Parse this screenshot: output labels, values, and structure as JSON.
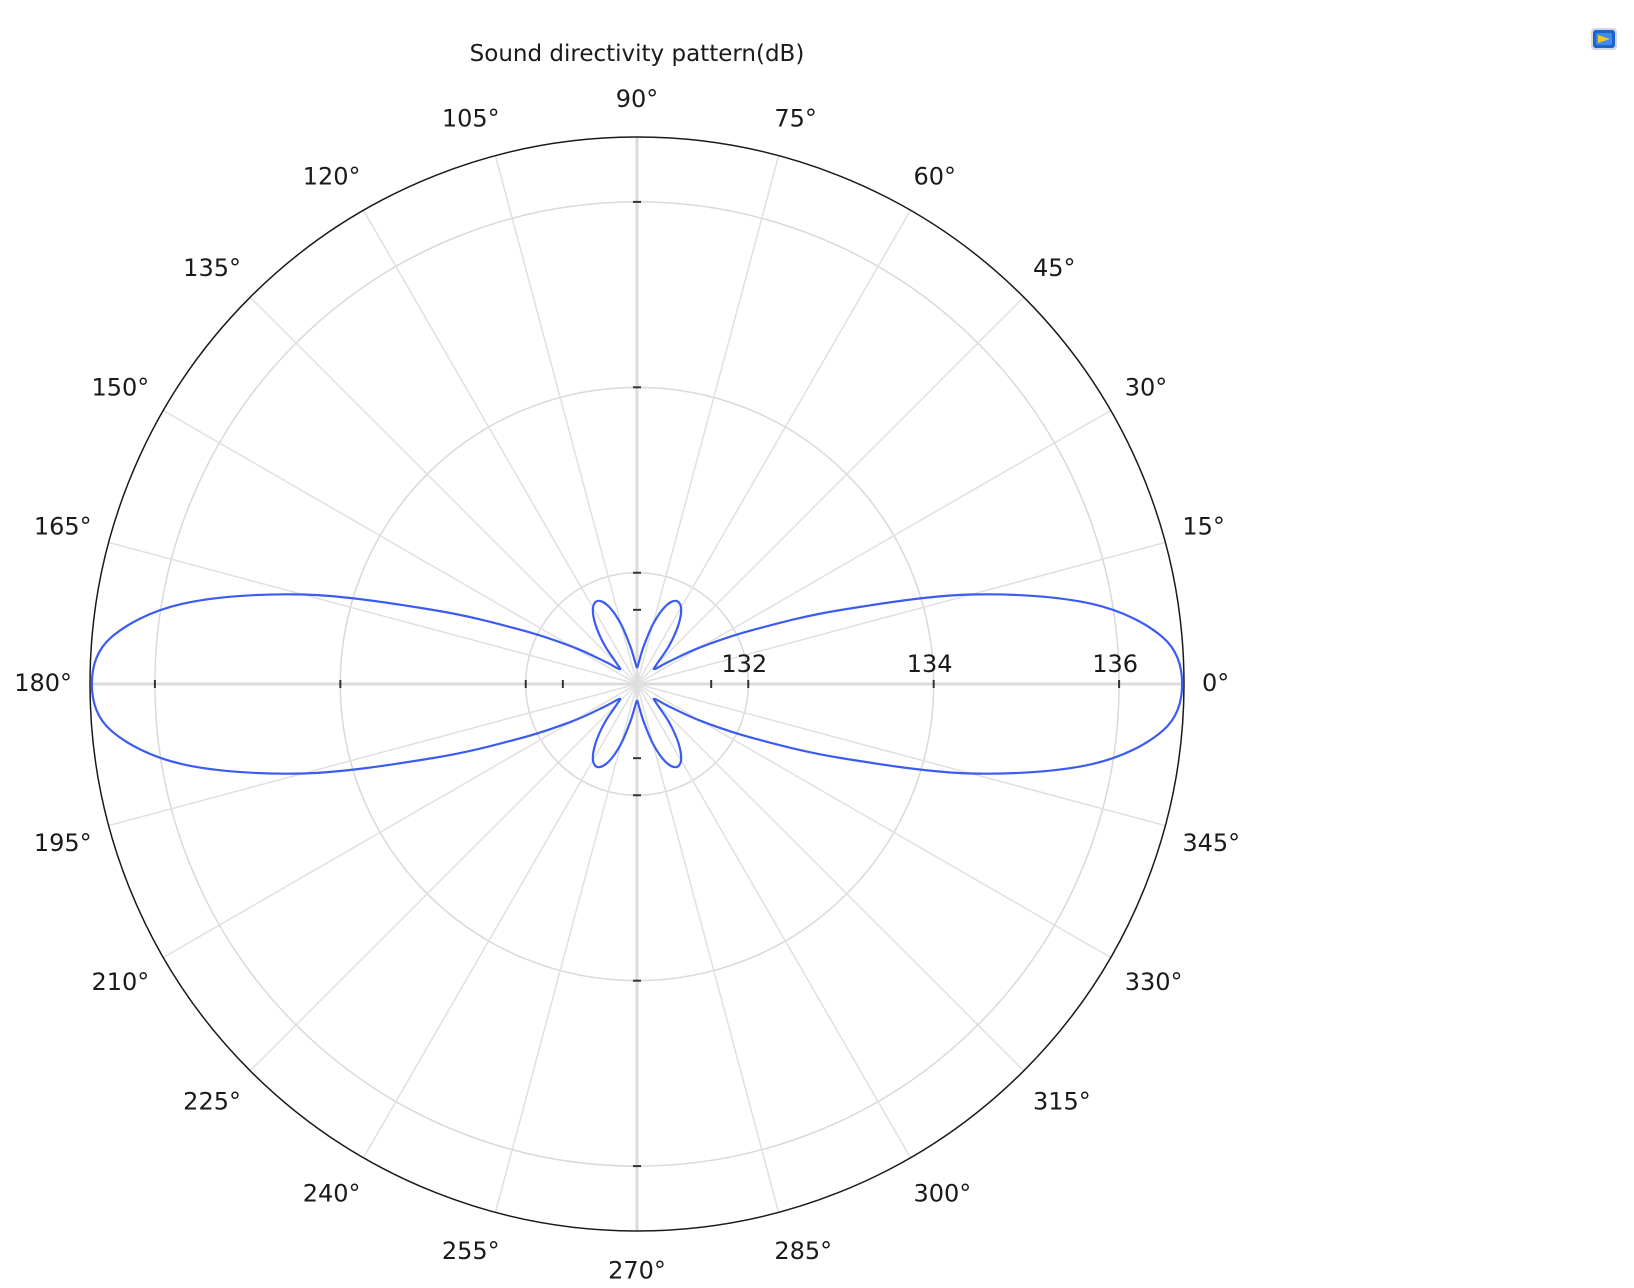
{
  "chart_data": {
    "type": "polar-line",
    "title": "Sound directivity pattern(dB)",
    "angle_unit": "degrees",
    "angle_ticks": [
      0,
      15,
      30,
      45,
      60,
      75,
      90,
      105,
      120,
      135,
      150,
      165,
      180,
      195,
      210,
      225,
      240,
      255,
      270,
      285,
      300,
      315,
      330,
      345
    ],
    "angle_tick_labels": [
      "0°",
      "15°",
      "30°",
      "45°",
      "60°",
      "75°",
      "90°",
      "105°",
      "120°",
      "135°",
      "150°",
      "165°",
      "180°",
      "195°",
      "210°",
      "225°",
      "240°",
      "255°",
      "270°",
      "285°",
      "300°",
      "315°",
      "330°",
      "345°"
    ],
    "radial_ticks": [
      130,
      132,
      134,
      136
    ],
    "radial_tick_labels": [
      "132",
      "134",
      "136"
    ],
    "rlim": [
      130.8,
      136.7
    ],
    "grid": true,
    "series": [
      {
        "color": "#3b5cf0",
        "angles": [
          0,
          5,
          10,
          15,
          20,
          25,
          30,
          35,
          40,
          45,
          50,
          55,
          60,
          65,
          70,
          75,
          80,
          85,
          90,
          95,
          100,
          105,
          110,
          115,
          120,
          125,
          130,
          135,
          140,
          145,
          150,
          155,
          160,
          165,
          170,
          175,
          180,
          185,
          190,
          195,
          200,
          205,
          210,
          215,
          220,
          225,
          230,
          235,
          240,
          245,
          250,
          255,
          260,
          265,
          270,
          275,
          280,
          285,
          290,
          295,
          300,
          305,
          310,
          315,
          320,
          325,
          330,
          335,
          340,
          345,
          350,
          355,
          360
        ],
        "values": [
          136.68,
          136.5,
          135.78,
          134.53,
          133.13,
          132.18,
          131.6,
          131.22,
          131.05,
          131.1,
          131.34,
          131.58,
          131.75,
          131.79,
          131.69,
          131.47,
          131.21,
          131.04,
          130.98,
          131.04,
          131.21,
          131.47,
          131.69,
          131.79,
          131.75,
          131.58,
          131.34,
          131.1,
          131.05,
          131.22,
          131.6,
          132.18,
          133.13,
          134.53,
          135.78,
          136.5,
          136.68,
          136.5,
          135.78,
          134.53,
          133.13,
          132.18,
          131.6,
          131.22,
          131.05,
          131.1,
          131.34,
          131.58,
          131.75,
          131.79,
          131.69,
          131.47,
          131.21,
          131.04,
          130.98,
          131.04,
          131.21,
          131.47,
          131.69,
          131.79,
          131.75,
          131.58,
          131.34,
          131.1,
          131.05,
          131.22,
          131.6,
          132.18,
          133.13,
          134.53,
          135.78,
          136.5,
          136.68
        ]
      }
    ]
  },
  "toolbar": {
    "icon": "plot-image-icon"
  }
}
